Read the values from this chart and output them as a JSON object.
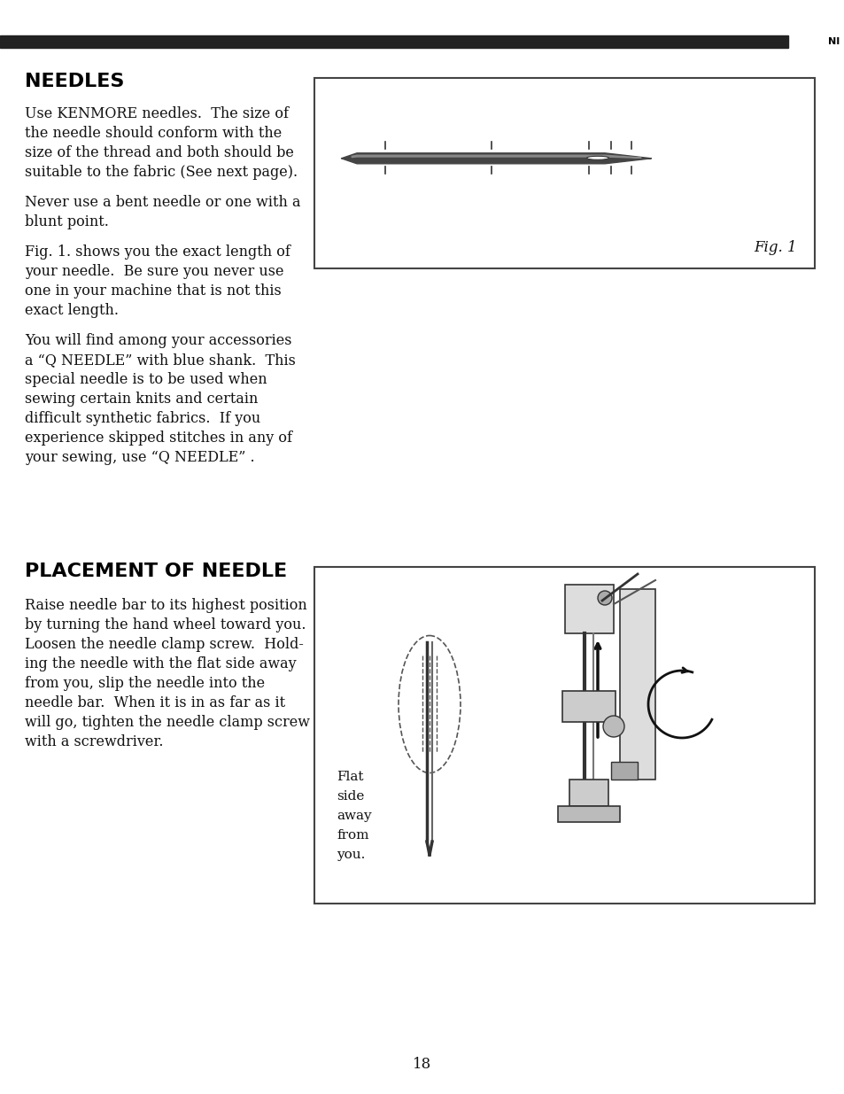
{
  "page_bg": "#ffffff",
  "top_bar_color": "#222222",
  "text_color": "#111111",
  "title_color": "#000000",
  "fig_box_color": "#444444",
  "page_number": "18",
  "title1": "NEEDLES",
  "title2": "PLACEMENT OF NEEDLE",
  "needles_para1": [
    "Use KENMORE needles.  The size of",
    "the needle should conform with the",
    "size of the thread and both should be",
    "suitable to the fabric (See next page)."
  ],
  "needles_para2": [
    "Never use a bent needle or one with a",
    "blunt point."
  ],
  "needles_para3": [
    "Fig. 1. shows you the exact length of",
    "your needle.  Be sure you never use",
    "one in your machine that is not this",
    "exact length."
  ],
  "needles_para4": [
    "You will find among your accessories",
    "a “Q NEEDLE” with blue shank.  This",
    "special needle is to be used when",
    "sewing certain knits and certain",
    "difficult synthetic fabrics.  If you",
    "experience skipped stitches in any of",
    "your sewing, use “Q NEEDLE” ."
  ],
  "placement_para1": [
    "Raise needle bar to its highest position",
    "by turning the hand wheel toward you.",
    "Loosen the needle clamp screw.  Hold-",
    "ing the needle with the flat side away",
    "from you, slip the needle into the",
    "needle bar.  When it is in as far as it",
    "will go, tighten the needle clamp screw",
    "with a screwdriver."
  ],
  "flat_side_label": [
    "Flat",
    "side",
    "away",
    "from",
    "you."
  ],
  "fig1_label": "Fig. 1"
}
